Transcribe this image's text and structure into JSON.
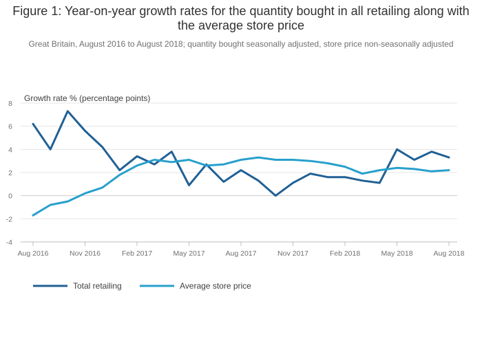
{
  "chart_data": {
    "type": "line",
    "title": "Figure 1: Year-on-year growth rates for the quantity bought in all retailing along with the average store price",
    "subtitle": "Great Britain, August 2016 to August 2018; quantity bought seasonally adjusted, store price non-seasonally adjusted",
    "ylabel": "Growth rate % (percentage points)",
    "xlabel": "",
    "ylim": [
      -4,
      8
    ],
    "yticks": [
      "8",
      "6",
      "4",
      "2",
      "0",
      "-2",
      "-4"
    ],
    "ytick_values": [
      8,
      6,
      4,
      2,
      0,
      -2,
      -4
    ],
    "xtick_labels": [
      "Aug 2016",
      "Nov 2016",
      "Feb 2017",
      "May 2017",
      "Aug 2017",
      "Nov 2017",
      "Feb 2018",
      "May 2018",
      "Aug 2018"
    ],
    "xtick_index": [
      0,
      3,
      6,
      9,
      12,
      15,
      18,
      21,
      24
    ],
    "x": [
      "Aug 2016",
      "Sep 2016",
      "Oct 2016",
      "Nov 2016",
      "Dec 2016",
      "Jan 2017",
      "Feb 2017",
      "Mar 2017",
      "Apr 2017",
      "May 2017",
      "Jun 2017",
      "Jul 2017",
      "Aug 2017",
      "Sep 2017",
      "Oct 2017",
      "Nov 2017",
      "Dec 2017",
      "Jan 2018",
      "Feb 2018",
      "Mar 2018",
      "Apr 2018",
      "May 2018",
      "Jun 2018",
      "Jul 2018",
      "Aug 2018"
    ],
    "series": [
      {
        "name": "Total retailing",
        "color": "#206095",
        "values": [
          6.2,
          4.0,
          7.3,
          5.6,
          4.2,
          2.2,
          3.4,
          2.7,
          3.8,
          0.9,
          2.7,
          1.2,
          2.2,
          1.3,
          0.0,
          1.1,
          1.9,
          1.6,
          1.6,
          1.3,
          1.1,
          4.0,
          3.1,
          3.8,
          3.3
        ]
      },
      {
        "name": "Average store price",
        "color": "#27a0cc",
        "values": [
          -1.7,
          -0.8,
          -0.5,
          0.2,
          0.7,
          1.8,
          2.6,
          3.1,
          2.9,
          3.1,
          2.6,
          2.7,
          3.1,
          3.3,
          3.1,
          3.1,
          3.0,
          2.8,
          2.5,
          1.9,
          2.2,
          2.4,
          2.3,
          2.1,
          2.2
        ]
      }
    ],
    "legend_position": "bottom-left",
    "grid": true
  }
}
